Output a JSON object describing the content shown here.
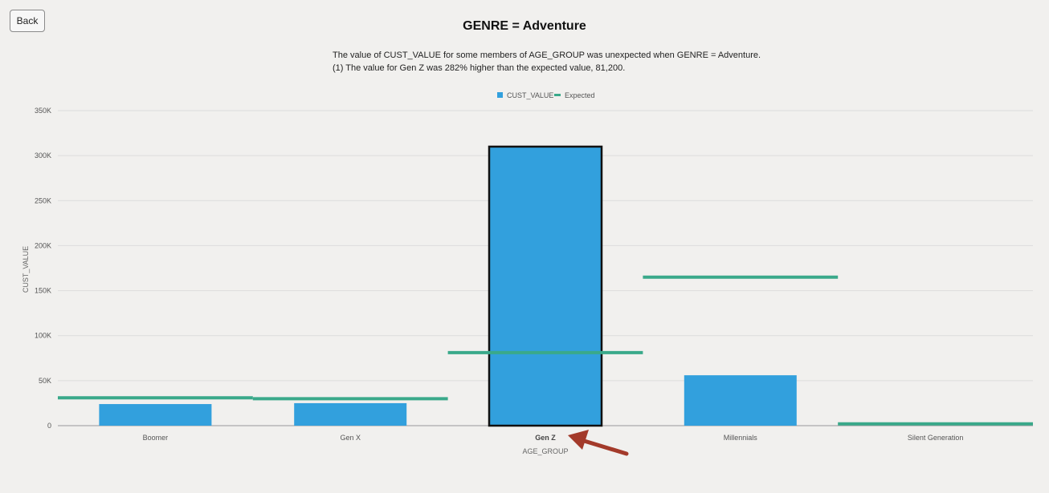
{
  "header": {
    "back_label": "Back",
    "title": "GENRE = Adventure"
  },
  "summary": {
    "line1": "The value of CUST_VALUE for some members of AGE_GROUP was unexpected when GENRE = Adventure.",
    "line2": "(1) The value for Gen Z was 282% higher than the expected value, 81,200."
  },
  "colors": {
    "bar": "#32a0dd",
    "expected": "#3aa98a",
    "highlight_border": "#111111",
    "arrow": "#a33a2a",
    "grid": "#dcdcdc"
  },
  "chart_data": {
    "type": "bar",
    "title": "GENRE = Adventure",
    "xlabel": "AGE_GROUP",
    "ylabel": "CUST_VALUE",
    "categories": [
      "Boomer",
      "Gen X",
      "Gen Z",
      "Millennials",
      "Silent Generation"
    ],
    "series": [
      {
        "name": "CUST_VALUE",
        "type": "bar",
        "values": [
          24000,
          25000,
          310000,
          56000,
          0
        ]
      },
      {
        "name": "Expected",
        "type": "line-segment",
        "values": [
          31000,
          30000,
          81200,
          165000,
          2000
        ]
      }
    ],
    "highlighted_category": "Gen Z",
    "ylim": [
      0,
      350000
    ],
    "yticks": [
      0,
      50000,
      100000,
      150000,
      200000,
      250000,
      300000,
      350000
    ],
    "ytick_labels": [
      "0",
      "50K",
      "100K",
      "150K",
      "200K",
      "250K",
      "300K",
      "350K"
    ],
    "legend": [
      "CUST_VALUE",
      "Expected"
    ],
    "legend_position": "top-center",
    "grid": true
  }
}
